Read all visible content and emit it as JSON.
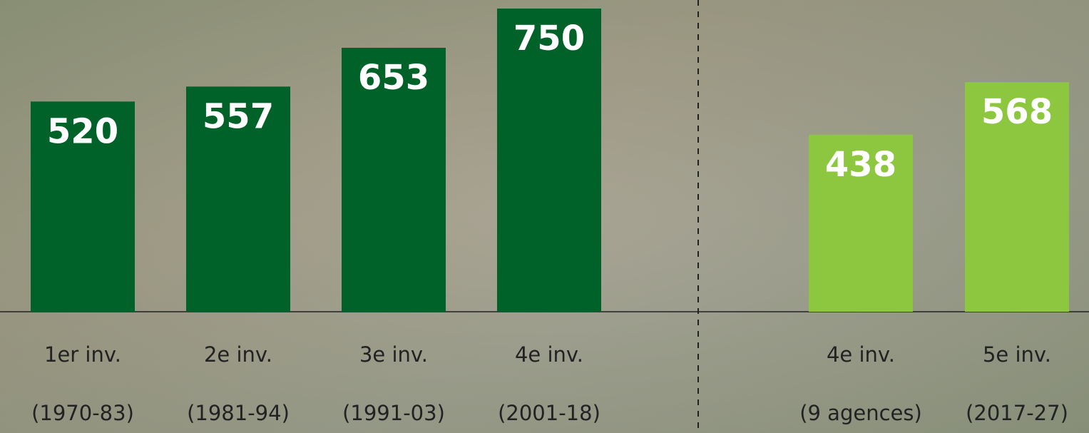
{
  "chart_data": [
    {
      "type": "bar",
      "categories": [
        [
          "1er inv.",
          "(1970-83)"
        ],
        [
          "2e inv.",
          "(1981-94)"
        ],
        [
          "3e inv.",
          "(1991-03)"
        ],
        [
          "4e inv.",
          "(2001-18)"
        ]
      ],
      "values": [
        520,
        557,
        653,
        750
      ],
      "color": "#006228",
      "ylim": [
        0,
        750
      ]
    },
    {
      "type": "bar",
      "categories": [
        [
          "4e inv.",
          "(9 agences)"
        ],
        [
          "5e inv.",
          "(2017-27)"
        ]
      ],
      "values": [
        438,
        568
      ],
      "color": "#8dc63f",
      "ylim": [
        0,
        750
      ]
    }
  ]
}
